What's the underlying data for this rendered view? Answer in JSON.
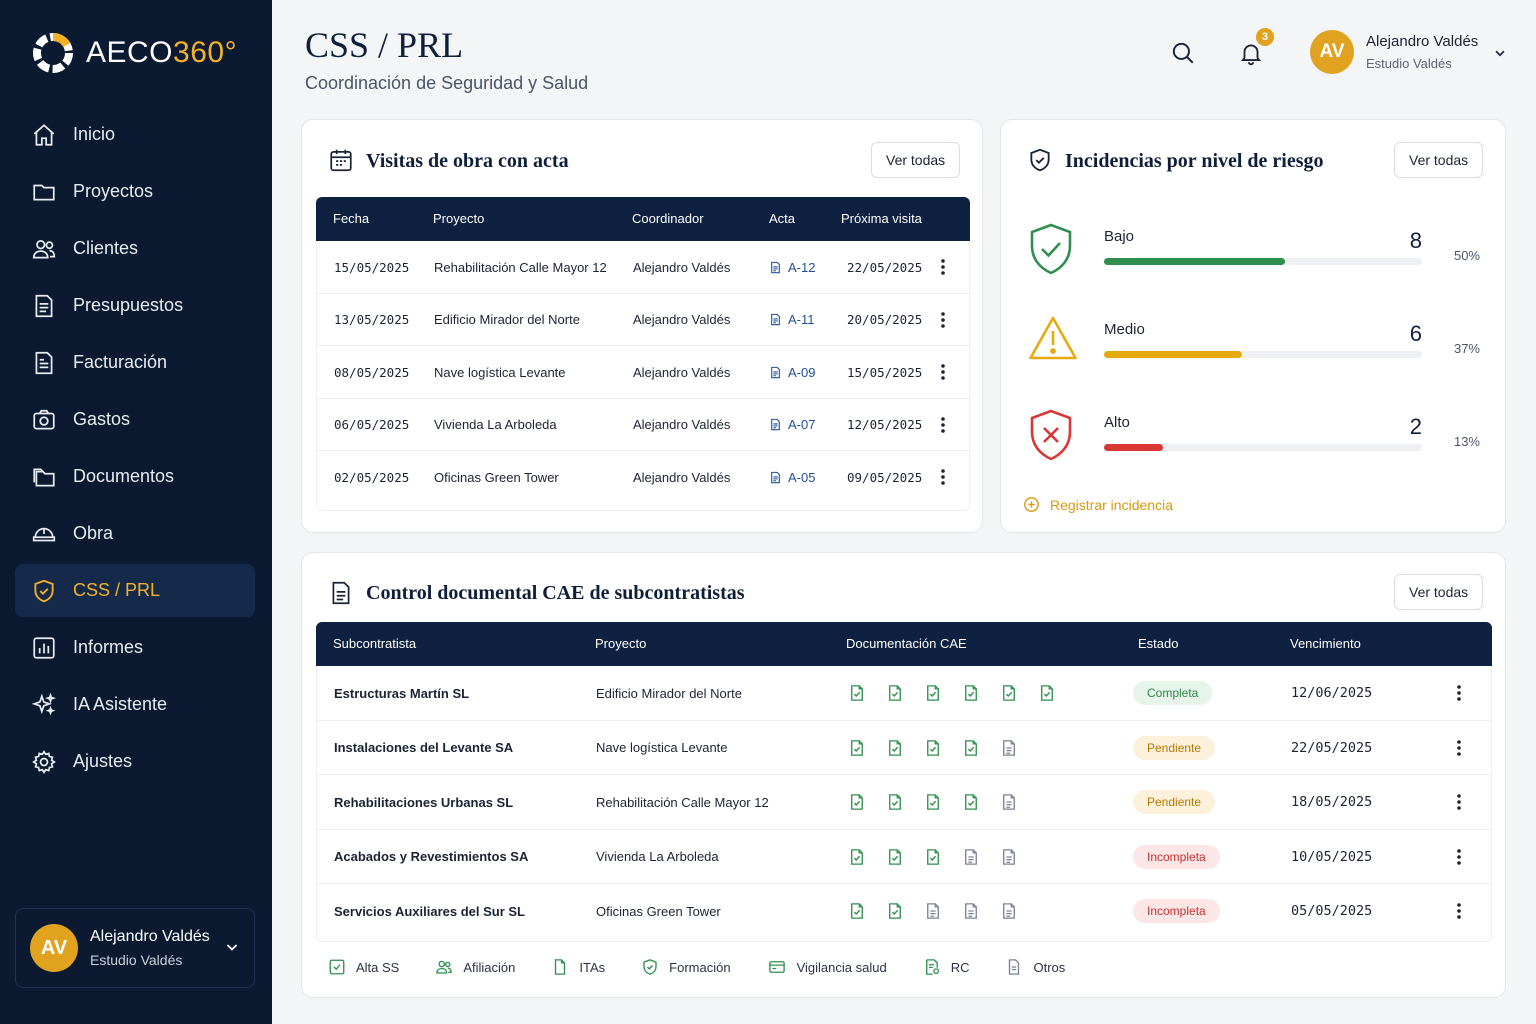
{
  "app": {
    "brand_name": "AECO",
    "brand_num": "360°"
  },
  "sidebar": {
    "items": [
      {
        "label": "Inicio",
        "icon": "home-icon"
      },
      {
        "label": "Proyectos",
        "icon": "folder-icon"
      },
      {
        "label": "Clientes",
        "icon": "users-icon"
      },
      {
        "label": "Presupuestos",
        "icon": "document-icon"
      },
      {
        "label": "Facturación",
        "icon": "invoice-icon"
      },
      {
        "label": "Gastos",
        "icon": "camera-icon"
      },
      {
        "label": "Documentos",
        "icon": "folders-icon"
      },
      {
        "label": "Obra",
        "icon": "helmet-icon"
      },
      {
        "label": "CSS / PRL",
        "icon": "shield-icon",
        "active": true
      },
      {
        "label": "Informes",
        "icon": "chart-icon"
      },
      {
        "label": "IA Asistente",
        "icon": "sparkle-icon"
      },
      {
        "label": "Ajustes",
        "icon": "gear-icon"
      }
    ],
    "user": {
      "initials": "AV",
      "name": "Alejandro Valdés",
      "studio": "Estudio Valdés"
    }
  },
  "header": {
    "title": "CSS / PRL",
    "subtitle": "Coordinación de Seguridad y Salud",
    "notifications_count": "3",
    "user": {
      "initials": "AV",
      "name": "Alejandro Valdés",
      "studio": "Estudio Valdés"
    }
  },
  "visits": {
    "title": "Visitas de obra con acta",
    "view_all": "Ver todas",
    "columns": [
      "Fecha",
      "Proyecto",
      "Coordinador",
      "Acta",
      "Próxima visita"
    ],
    "rows": [
      {
        "fecha": "15/05/2025",
        "proyecto": "Rehabilitación Calle Mayor 12",
        "coordinador": "Alejandro Valdés",
        "acta": "A-12",
        "proxima": "22/05/2025"
      },
      {
        "fecha": "13/05/2025",
        "proyecto": "Edificio Mirador del Norte",
        "coordinador": "Alejandro Valdés",
        "acta": "A-11",
        "proxima": "20/05/2025"
      },
      {
        "fecha": "08/05/2025",
        "proyecto": "Nave logística Levante",
        "coordinador": "Alejandro Valdés",
        "acta": "A-09",
        "proxima": "15/05/2025"
      },
      {
        "fecha": "06/05/2025",
        "proyecto": "Vivienda La Arboleda",
        "coordinador": "Alejandro Valdés",
        "acta": "A-07",
        "proxima": "12/05/2025"
      },
      {
        "fecha": "02/05/2025",
        "proyecto": "Oficinas Green Tower",
        "coordinador": "Alejandro Valdés",
        "acta": "A-05",
        "proxima": "09/05/2025"
      }
    ]
  },
  "risk": {
    "title": "Incidencias por nivel de riesgo",
    "view_all": "Ver todas",
    "levels": [
      {
        "label": "Bajo",
        "count": "8",
        "pct": "50%",
        "fraction": 0.57,
        "color": "#2f8f4e",
        "icon": "shield-check-icon"
      },
      {
        "label": "Medio",
        "count": "6",
        "pct": "37%",
        "fraction": 0.435,
        "color": "#e6a910",
        "icon": "warning-icon"
      },
      {
        "label": "Alto",
        "count": "2",
        "pct": "13%",
        "fraction": 0.185,
        "color": "#d93636",
        "icon": "shield-x-icon"
      }
    ],
    "register_label": "Registrar incidencia"
  },
  "cae": {
    "title": "Control documental CAE de subcontratistas",
    "view_all": "Ver todas",
    "columns": [
      "Subcontratista",
      "Proyecto",
      "Documentación CAE",
      "Estado",
      "Vencimiento"
    ],
    "rows": [
      {
        "sub": "Estructuras Martín SL",
        "proyecto": "Edificio Mirador del Norte",
        "docs": [
          1,
          1,
          1,
          1,
          1,
          1
        ],
        "estado": "Completa",
        "tipo": "ok",
        "venc": "12/06/2025"
      },
      {
        "sub": "Instalaciones del Levante SA",
        "proyecto": "Nave logística Levante",
        "docs": [
          1,
          1,
          1,
          1,
          0
        ],
        "estado": "Pendiente",
        "tipo": "pend",
        "venc": "22/05/2025"
      },
      {
        "sub": "Rehabilitaciones Urbanas SL",
        "proyecto": "Rehabilitación Calle Mayor 12",
        "docs": [
          1,
          1,
          1,
          1,
          0
        ],
        "estado": "Pendiente",
        "tipo": "pend",
        "venc": "18/05/2025"
      },
      {
        "sub": "Acabados y Revestimientos SA",
        "proyecto": "Vivienda La Arboleda",
        "docs": [
          1,
          1,
          1,
          0,
          0
        ],
        "estado": "Incompleta",
        "tipo": "inc",
        "venc": "10/05/2025"
      },
      {
        "sub": "Servicios Auxiliares del Sur SL",
        "proyecto": "Oficinas Green Tower",
        "docs": [
          1,
          1,
          0,
          0,
          0
        ],
        "estado": "Incompleta",
        "tipo": "inc",
        "venc": "05/05/2025"
      }
    ],
    "legend": [
      "Alta SS",
      "Afiliación",
      "ITAs",
      "Formación",
      "Vigilancia salud",
      "RC",
      "Otros"
    ]
  }
}
